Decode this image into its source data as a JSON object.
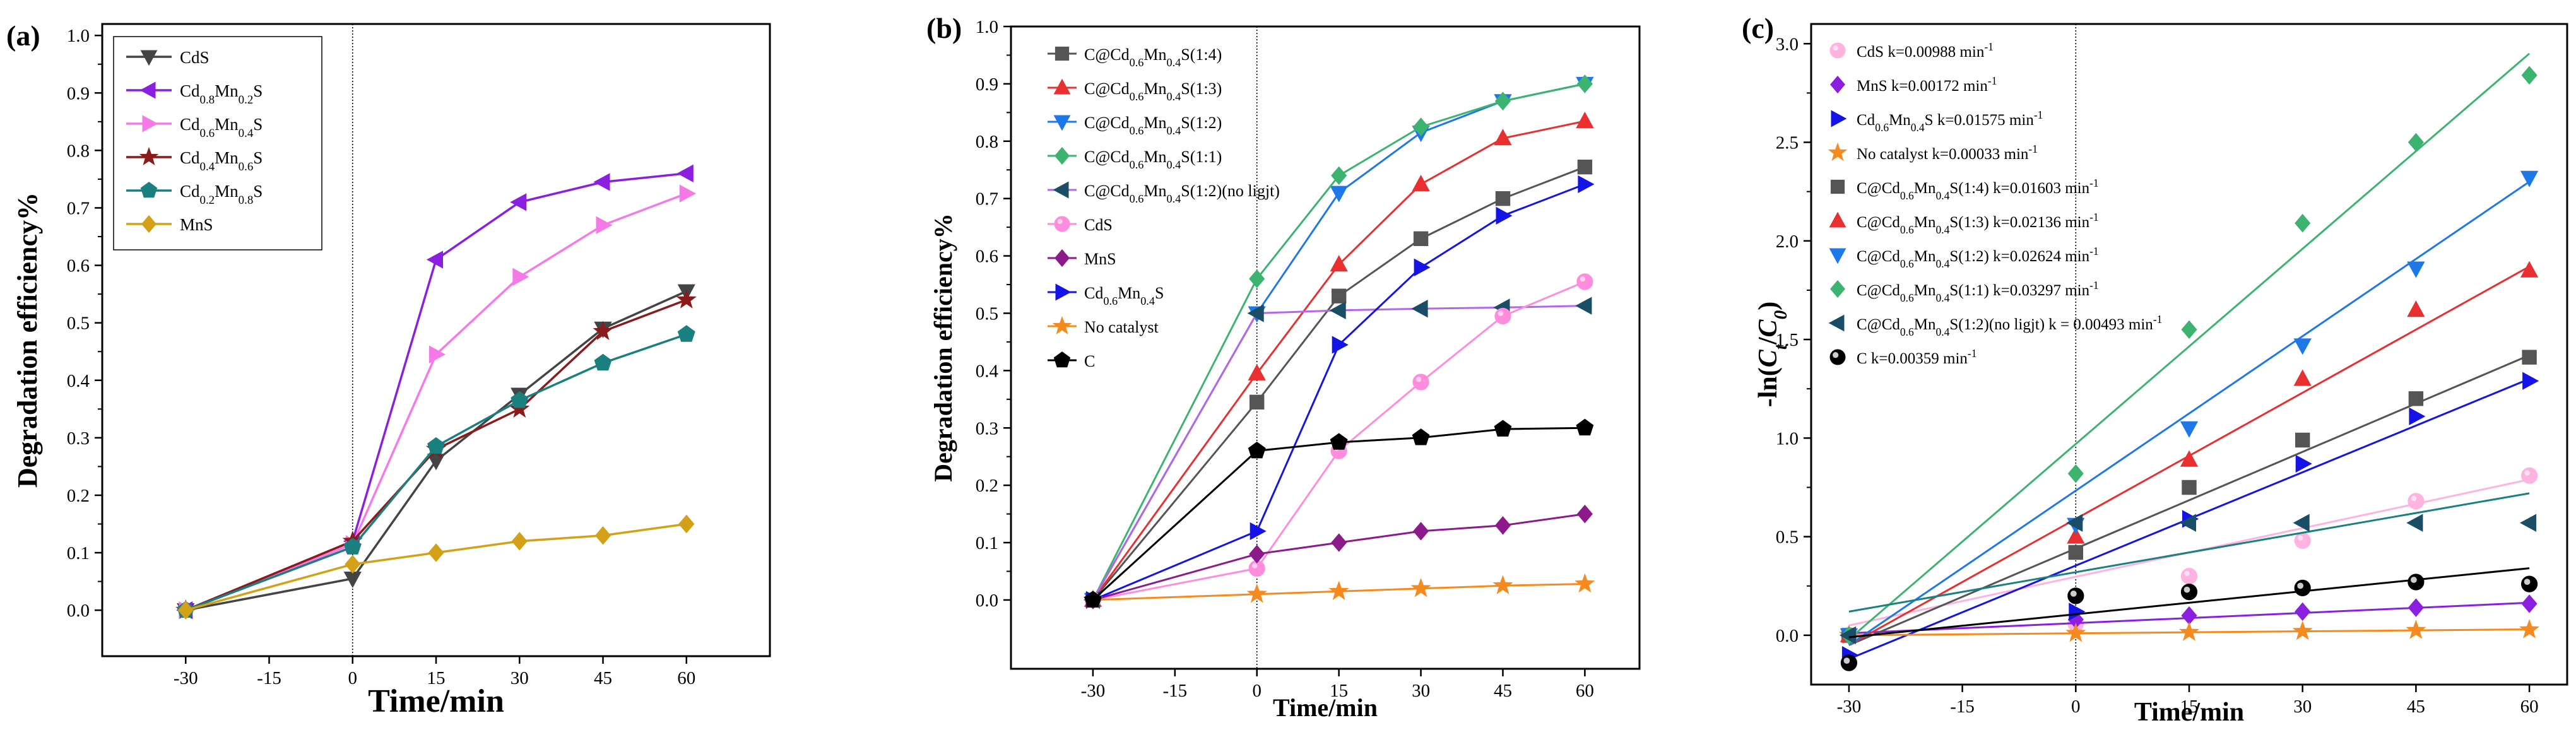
{
  "chart_data": [
    {
      "panel": "(a)",
      "type": "line",
      "xlabel": "Time/min",
      "ylabel": "Degradation efficiency%",
      "x": [
        -30,
        0,
        15,
        30,
        45,
        60
      ],
      "xticks": [
        "-30",
        "-15",
        "0",
        "15",
        "30",
        "45",
        "60"
      ],
      "xtick_values": [
        -30,
        -15,
        0,
        15,
        30,
        45,
        60
      ],
      "yticks": [
        "0.0",
        "0.1",
        "0.2",
        "0.3",
        "0.4",
        "0.5",
        "0.6",
        "0.7",
        "0.8",
        "0.9",
        "1.0"
      ],
      "xlim": [
        -45,
        75
      ],
      "ylim": [
        -0.08,
        1.02
      ],
      "legend_position": "top-left",
      "series": [
        {
          "name": "CdS",
          "legend_html": "CdS",
          "color": "#444444",
          "marker": "triangle-down",
          "values": [
            0.0,
            0.055,
            0.26,
            0.375,
            0.49,
            0.555
          ]
        },
        {
          "name": "Cd0.8Mn0.2S",
          "legend_html": "Cd<tspan baseline-shift=\"sub\" font-size=\"70%\">0.8</tspan>Mn<tspan baseline-shift=\"sub\" font-size=\"70%\">0.2</tspan>S",
          "color": "#8a1fe0",
          "marker": "triangle-left",
          "values": [
            0.0,
            0.12,
            0.61,
            0.71,
            0.745,
            0.76
          ]
        },
        {
          "name": "Cd0.6Mn0.4S",
          "legend_html": "Cd<tspan baseline-shift=\"sub\" font-size=\"70%\">0.6</tspan>Mn<tspan baseline-shift=\"sub\" font-size=\"70%\">0.4</tspan>S",
          "color": "#f57ae8",
          "marker": "triangle-right",
          "values": [
            0.0,
            0.115,
            0.445,
            0.58,
            0.67,
            0.725
          ]
        },
        {
          "name": "Cd0.4Mn0.6S",
          "legend_html": "Cd<tspan baseline-shift=\"sub\" font-size=\"70%\">0.4</tspan>Mn<tspan baseline-shift=\"sub\" font-size=\"70%\">0.6</tspan>S",
          "color": "#8b1a1a",
          "marker": "star",
          "values": [
            0.0,
            0.12,
            0.28,
            0.35,
            0.485,
            0.54
          ]
        },
        {
          "name": "Cd0.2Mn0.8S",
          "legend_html": "Cd<tspan baseline-shift=\"sub\" font-size=\"70%\">0.2</tspan>Mn<tspan baseline-shift=\"sub\" font-size=\"70%\">0.8</tspan>S",
          "color": "#1a7f7f",
          "marker": "pentagon",
          "values": [
            0.0,
            0.11,
            0.285,
            0.365,
            0.43,
            0.48
          ]
        },
        {
          "name": "MnS",
          "legend_html": "MnS",
          "color": "#d4a017",
          "marker": "diamond",
          "values": [
            0.0,
            0.08,
            0.1,
            0.12,
            0.13,
            0.15
          ]
        }
      ]
    },
    {
      "panel": "(b)",
      "type": "line",
      "xlabel": "Time/min",
      "ylabel": "Degradation efficiency%",
      "x": [
        -30,
        0,
        15,
        30,
        45,
        60
      ],
      "xticks": [
        "-30",
        "-15",
        "0",
        "15",
        "30",
        "45",
        "60"
      ],
      "xtick_values": [
        -30,
        -15,
        0,
        15,
        30,
        45,
        60
      ],
      "yticks": [
        "0.0",
        "0.1",
        "0.2",
        "0.3",
        "0.4",
        "0.5",
        "0.6",
        "0.7",
        "0.8",
        "0.9",
        "1.0"
      ],
      "xlim": [
        -45,
        70
      ],
      "ylim": [
        -0.12,
        1.0
      ],
      "legend_position": "top-left",
      "series": [
        {
          "name": "C@Cd0.6Mn0.4S(1:4)",
          "legend_html": "C@Cd<tspan baseline-shift=\"sub\" font-size=\"70%\">0.6</tspan>Mn<tspan baseline-shift=\"sub\" font-size=\"70%\">0.4</tspan>S(1:4)",
          "color": "#555555",
          "marker": "square",
          "values": [
            0.0,
            0.345,
            0.53,
            0.63,
            0.7,
            0.755
          ]
        },
        {
          "name": "C@Cd0.6Mn0.4S(1:3)",
          "legend_html": "C@Cd<tspan baseline-shift=\"sub\" font-size=\"70%\">0.6</tspan>Mn<tspan baseline-shift=\"sub\" font-size=\"70%\">0.4</tspan>S(1:3)",
          "color": "#e83030",
          "marker": "triangle-up",
          "values": [
            0.0,
            0.395,
            0.585,
            0.725,
            0.805,
            0.835
          ]
        },
        {
          "name": "C@Cd0.6Mn0.4S(1:2)",
          "legend_html": "C@Cd<tspan baseline-shift=\"sub\" font-size=\"70%\">0.6</tspan>Mn<tspan baseline-shift=\"sub\" font-size=\"70%\">0.4</tspan>S(1:2)",
          "color": "#1f78e8",
          "marker": "triangle-down",
          "values": [
            0.0,
            0.5,
            0.71,
            0.815,
            0.87,
            0.9
          ]
        },
        {
          "name": "C@Cd0.6Mn0.4S(1:1)",
          "legend_html": "C@Cd<tspan baseline-shift=\"sub\" font-size=\"70%\">0.6</tspan>Mn<tspan baseline-shift=\"sub\" font-size=\"70%\">0.4</tspan>S(1:1)",
          "color": "#3cb371",
          "marker": "diamond",
          "values": [
            0.0,
            0.56,
            0.74,
            0.825,
            0.87,
            0.9
          ]
        },
        {
          "name": "C@Cd0.6Mn0.4S(1:2)(no ligjt)",
          "legend_html": "C@Cd<tspan baseline-shift=\"sub\" font-size=\"70%\">0.6</tspan>Mn<tspan baseline-shift=\"sub\" font-size=\"70%\">0.4</tspan>S(1:2)(no ligjt)",
          "color": "#1a4d66",
          "marker": "triangle-left",
          "line_color": "#b566e8",
          "values": [
            0.0,
            0.5,
            0.505,
            0.508,
            0.51,
            0.513
          ]
        },
        {
          "name": "CdS",
          "legend_html": "CdS",
          "color": "#ff8cdc",
          "marker": "circle",
          "values": [
            0.0,
            0.055,
            0.26,
            0.38,
            0.495,
            0.555
          ]
        },
        {
          "name": "MnS",
          "legend_html": "MnS",
          "color": "#8b1a8b",
          "marker": "diamond",
          "values": [
            0.0,
            0.08,
            0.1,
            0.12,
            0.13,
            0.15
          ]
        },
        {
          "name": "Cd0.6Mn0.4S",
          "legend_html": "Cd<tspan baseline-shift=\"sub\" font-size=\"70%\">0.6</tspan>Mn<tspan baseline-shift=\"sub\" font-size=\"70%\">0.4</tspan>S",
          "color": "#1414e8",
          "marker": "triangle-right",
          "values": [
            0.0,
            0.12,
            0.445,
            0.58,
            0.67,
            0.725
          ]
        },
        {
          "name": "No catalyst",
          "legend_html": "No catalyst",
          "color": "#f58a1f",
          "marker": "star",
          "values": [
            0.0,
            0.01,
            0.015,
            0.02,
            0.025,
            0.028
          ]
        },
        {
          "name": "C",
          "legend_html": "C",
          "color": "#000000",
          "marker": "pentagon",
          "values": [
            0.0,
            0.26,
            0.275,
            0.283,
            0.298,
            0.3
          ]
        }
      ]
    },
    {
      "panel": "(c)",
      "type": "scatter",
      "xlabel": "Time/min",
      "ylabel": "-ln(Ct/C0)",
      "ylabel_html": "-ln(<tspan font-style=\"italic\">C</tspan><tspan baseline-shift=\"sub\" font-size=\"70%\" font-style=\"italic\">t</tspan>/<tspan font-style=\"italic\">C</tspan><tspan baseline-shift=\"sub\" font-size=\"70%\" font-style=\"italic\">0</tspan>)",
      "x": [
        -30,
        0,
        15,
        30,
        45,
        60
      ],
      "xticks": [
        "-30",
        "-15",
        "0",
        "15",
        "30",
        "45",
        "60"
      ],
      "xtick_values": [
        -30,
        -15,
        0,
        15,
        30,
        45,
        60
      ],
      "yticks": [
        "0.0",
        "0.5",
        "1.0",
        "1.5",
        "2.0",
        "2.5",
        "3.0"
      ],
      "ytick_values": [
        0.0,
        0.5,
        1.0,
        1.5,
        2.0,
        2.5,
        3.0
      ],
      "xlim": [
        -35,
        65
      ],
      "ylim": [
        -0.25,
        3.1
      ],
      "legend_position": "top-left",
      "series": [
        {
          "name": "CdS k=0.00988 min-1",
          "legend_html": "CdS k=0.00988 min<tspan baseline-shift=\"super\" font-size=\"70%\">-1</tspan>",
          "color": "#ffb3e0",
          "marker": "circle",
          "values": [
            0.0,
            0.06,
            0.3,
            0.48,
            0.68,
            0.81
          ],
          "fit": [
            0.05,
            0.79
          ]
        },
        {
          "name": "MnS k=0.00172 min-1",
          "legend_html": "MnS k=0.00172 min<tspan baseline-shift=\"super\" font-size=\"70%\">-1</tspan>",
          "color": "#8a1fe0",
          "marker": "diamond",
          "values": [
            0.0,
            0.08,
            0.1,
            0.12,
            0.14,
            0.16
          ],
          "fit": [
            0.01,
            0.165
          ]
        },
        {
          "name": "Cd0.6Mn0.4S k=0.01575 min-1",
          "legend_html": "Cd<tspan baseline-shift=\"sub\" font-size=\"70%\">0.6</tspan>Mn<tspan baseline-shift=\"sub\" font-size=\"70%\">0.4</tspan>S k=0.01575 min<tspan baseline-shift=\"super\" font-size=\"70%\">-1</tspan>",
          "color": "#1414e8",
          "marker": "triangle-right",
          "values": [
            -0.1,
            0.12,
            0.59,
            0.87,
            1.11,
            1.29
          ],
          "fit": [
            -0.12,
            1.3
          ]
        },
        {
          "name": "No catalyst k=0.00033 min-1",
          "legend_html": "No catalyst k=0.00033 min<tspan baseline-shift=\"super\" font-size=\"70%\">-1</tspan>",
          "color": "#f58a1f",
          "marker": "star",
          "values": [
            0.0,
            0.01,
            0.015,
            0.02,
            0.025,
            0.028
          ],
          "fit": [
            0.0,
            0.03
          ]
        },
        {
          "name": "C@Cd0.6Mn0.4S(1:4) k=0.01603 min-1",
          "legend_html": "C@Cd<tspan baseline-shift=\"sub\" font-size=\"70%\">0.6</tspan>Mn<tspan baseline-shift=\"sub\" font-size=\"70%\">0.4</tspan>S(1:4) k=0.01603 min<tspan baseline-shift=\"super\" font-size=\"70%\">-1</tspan>",
          "color": "#555555",
          "marker": "square",
          "values": [
            0.0,
            0.42,
            0.75,
            0.99,
            1.2,
            1.41
          ],
          "fit": [
            -0.05,
            1.42
          ]
        },
        {
          "name": "C@Cd0.6Mn0.4S(1:3) k=0.02136 min-1",
          "legend_html": "C@Cd<tspan baseline-shift=\"sub\" font-size=\"70%\">0.6</tspan>Mn<tspan baseline-shift=\"sub\" font-size=\"70%\">0.4</tspan>S(1:3) k=0.02136 min<tspan baseline-shift=\"super\" font-size=\"70%\">-1</tspan>",
          "color": "#e83030",
          "marker": "triangle-up",
          "values": [
            0.0,
            0.5,
            0.89,
            1.3,
            1.65,
            1.85
          ],
          "fit": [
            -0.05,
            1.87
          ]
        },
        {
          "name": "C@Cd0.6Mn0.4S(1:2) k=0.02624 min-1",
          "legend_html": "C@Cd<tspan baseline-shift=\"sub\" font-size=\"70%\">0.6</tspan>Mn<tspan baseline-shift=\"sub\" font-size=\"70%\">0.4</tspan>S(1:2) k=0.02624 min<tspan baseline-shift=\"super\" font-size=\"70%\">-1</tspan>",
          "color": "#1f78e8",
          "marker": "triangle-down",
          "values": [
            0.0,
            0.56,
            1.05,
            1.47,
            1.86,
            2.32
          ],
          "fit": [
            -0.05,
            2.3
          ]
        },
        {
          "name": "C@Cd0.6Mn0.4S(1:1) k=0.03297 min-1",
          "legend_html": "C@Cd<tspan baseline-shift=\"sub\" font-size=\"70%\">0.6</tspan>Mn<tspan baseline-shift=\"sub\" font-size=\"70%\">0.4</tspan>S(1:1) k=0.03297 min<tspan baseline-shift=\"super\" font-size=\"70%\">-1</tspan>",
          "color": "#3cb371",
          "marker": "diamond",
          "values": [
            0.0,
            0.82,
            1.55,
            2.09,
            2.5,
            2.84
          ],
          "fit": [
            -0.02,
            2.95
          ]
        },
        {
          "name": "C@Cd0.6Mn0.4S(1:2)(no ligjt) k = 0.00493 min-1",
          "legend_html": "C@Cd<tspan baseline-shift=\"sub\" font-size=\"70%\">0.6</tspan>Mn<tspan baseline-shift=\"sub\" font-size=\"70%\">0.4</tspan>S(1:2)(no ligjt) k = 0.00493 min<tspan baseline-shift=\"super\" font-size=\"70%\">-1</tspan>",
          "color": "#1a4d66",
          "marker": "triangle-left",
          "line_color": "#1a8080",
          "values": [
            0.0,
            0.57,
            0.57,
            0.57,
            0.57,
            0.57
          ],
          "fit": [
            0.12,
            0.72
          ]
        },
        {
          "name": "C k=0.00359 min-1",
          "legend_html": "C k=0.00359 min<tspan baseline-shift=\"super\" font-size=\"70%\">-1</tspan>",
          "color": "#000000",
          "marker": "circle-shaded",
          "values": [
            -0.14,
            0.2,
            0.22,
            0.24,
            0.27,
            0.26
          ],
          "fit": [
            -0.01,
            0.34
          ]
        }
      ]
    }
  ]
}
